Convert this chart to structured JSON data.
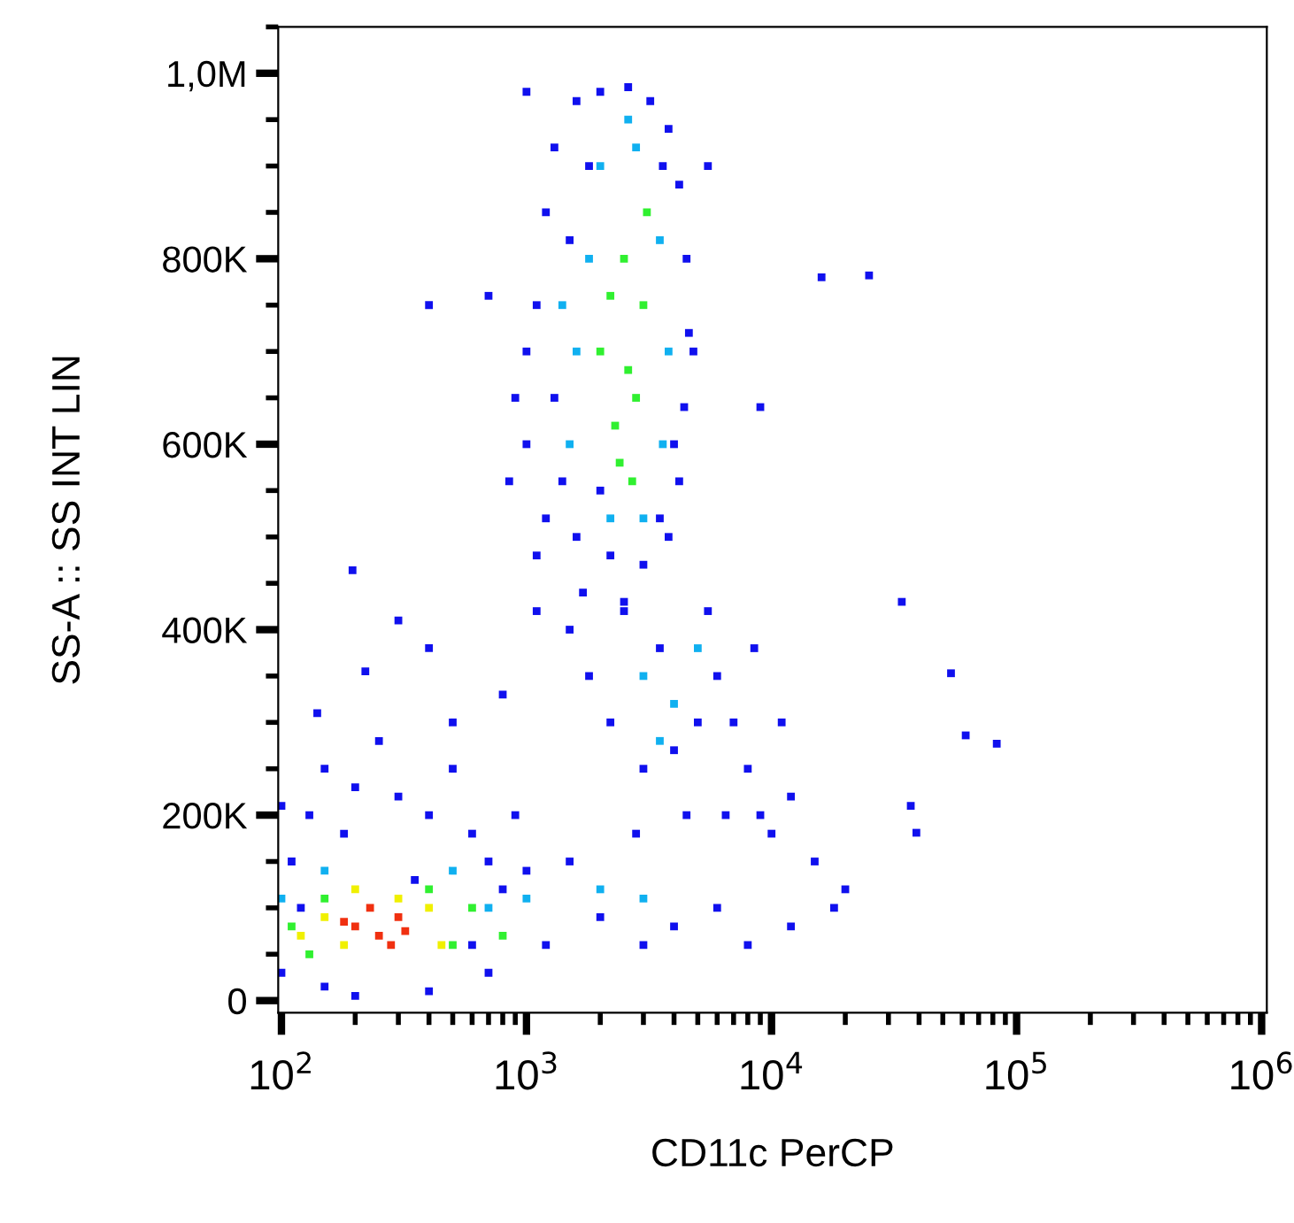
{
  "chart_data": {
    "type": "scatter",
    "xlabel": "CD11c PerCP",
    "ylabel": "SS-A :: SS INT LIN",
    "log": "x",
    "marker": "square",
    "grid": false,
    "legend": false,
    "xlim": [
      97,
      1050000
    ],
    "ylim": [
      -13000,
      1050000
    ],
    "xticks": [
      {
        "value": 100,
        "label": "10$^{2}$"
      },
      {
        "value": 1000,
        "label": "10$^{3}$"
      },
      {
        "value": 10000,
        "label": "10$^{4}$"
      },
      {
        "value": 100000,
        "label": "10$^{5}$"
      },
      {
        "value": 1000000,
        "label": "10$^{6}$"
      }
    ],
    "yticks": [
      0,
      {
        "value": 200000,
        "label": "200K"
      },
      {
        "value": 400000,
        "label": "400K"
      },
      {
        "value": 600000,
        "label": "600K"
      },
      {
        "value": 800000,
        "label": "800K"
      },
      {
        "value": 1000000,
        "label": "1,0M"
      }
    ],
    "series": [
      {
        "color": "#1010ee",
        "x": [
          1000,
          1100,
          1200,
          1300,
          1600,
          2000,
          2600,
          3200,
          3800,
          4200,
          4500,
          4600,
          4400,
          4200,
          3800,
          3000,
          2200,
          1600,
          1200,
          1000,
          900,
          850,
          1100,
          1400,
          1500,
          1800,
          3600,
          4000,
          1300,
          2000,
          3500,
          4800,
          1700,
          2500,
          700,
          1000,
          5500,
          400,
          16000,
          25000,
          9000,
          1500,
          1800,
          2200,
          3000,
          4000,
          5000,
          6000,
          7000,
          8000,
          9000,
          10000,
          12000,
          15000,
          20000,
          3500,
          2500,
          5500,
          6500,
          4500,
          2800,
          11000,
          8500,
          62000,
          83000,
          54000,
          34000,
          37000,
          39000,
          100,
          110,
          130,
          150,
          200,
          250,
          300,
          400,
          500,
          600,
          700,
          800,
          1000,
          1500,
          2000,
          3000,
          4000,
          6000,
          8000,
          12000,
          18000,
          700,
          400,
          200,
          150,
          120,
          600,
          1200,
          900,
          350,
          180,
          100,
          140,
          195,
          220,
          300,
          400,
          500,
          800,
          1100
        ],
        "values": [
          600000,
          750000,
          850000,
          920000,
          970000,
          980000,
          985000,
          970000,
          940000,
          880000,
          800000,
          720000,
          640000,
          560000,
          500000,
          470000,
          480000,
          500000,
          520000,
          700000,
          650000,
          560000,
          480000,
          560000,
          820000,
          900000,
          900000,
          600000,
          650000,
          550000,
          520000,
          700000,
          440000,
          430000,
          760000,
          980000,
          900000,
          750000,
          780000,
          782000,
          640000,
          400000,
          350000,
          300000,
          250000,
          270000,
          300000,
          350000,
          300000,
          250000,
          200000,
          180000,
          220000,
          150000,
          120000,
          380000,
          420000,
          420000,
          200000,
          200000,
          180000,
          300000,
          380000,
          286000,
          277000,
          353000,
          430000,
          210000,
          181000,
          30000,
          150000,
          200000,
          250000,
          230000,
          280000,
          220000,
          200000,
          250000,
          180000,
          150000,
          120000,
          140000,
          150000,
          90000,
          60000,
          80000,
          100000,
          60000,
          80000,
          100000,
          30000,
          10000,
          5000,
          15000,
          100000,
          60000,
          60000,
          200000,
          130000,
          180000,
          210000,
          310000,
          464000,
          355000,
          410000,
          380000,
          300000,
          330000,
          420000
        ]
      },
      {
        "color": "#10b0f0",
        "x": [
          1500,
          1800,
          2000,
          2800,
          3500,
          3800,
          3600,
          1600,
          2200,
          3000,
          1400,
          2600,
          3000,
          4000,
          5000,
          3500,
          100,
          500,
          1000,
          2000,
          3000,
          150,
          700
        ],
        "values": [
          600000,
          800000,
          900000,
          920000,
          820000,
          700000,
          600000,
          700000,
          520000,
          520000,
          750000,
          950000,
          350000,
          320000,
          380000,
          280000,
          110000,
          140000,
          110000,
          120000,
          110000,
          140000,
          100000
        ]
      },
      {
        "color": "#30f030",
        "x": [
          2000,
          2500,
          3000,
          2300,
          2800,
          2700,
          2200,
          3100,
          2600,
          2400,
          110,
          130,
          500,
          600,
          150,
          400,
          800
        ],
        "values": [
          700000,
          800000,
          750000,
          620000,
          650000,
          560000,
          760000,
          850000,
          680000,
          580000,
          80000,
          50000,
          60000,
          100000,
          110000,
          120000,
          70000
        ]
      },
      {
        "color": "#f0f000",
        "x": [
          150,
          180,
          400,
          450,
          200,
          120,
          300
        ],
        "values": [
          90000,
          60000,
          100000,
          60000,
          120000,
          70000,
          110000
        ]
      },
      {
        "color": "#f03010",
        "x": [
          200,
          250,
          300,
          230,
          280,
          180,
          320
        ],
        "values": [
          80000,
          70000,
          90000,
          100000,
          60000,
          85000,
          75000
        ]
      }
    ]
  }
}
